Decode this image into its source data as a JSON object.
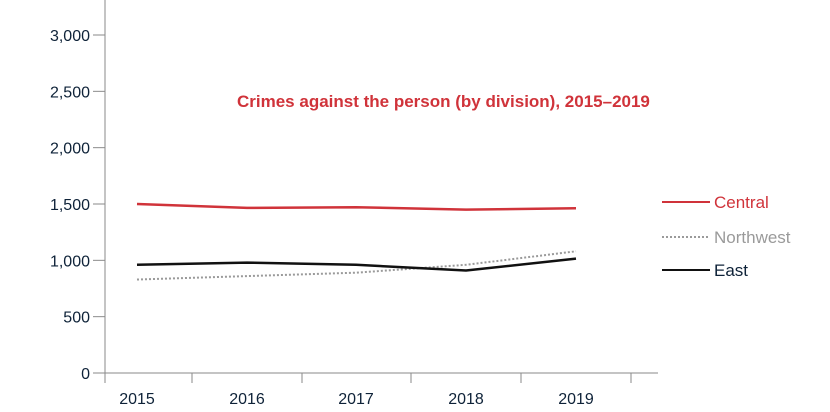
{
  "colors": {
    "axis": "#8a8a8a",
    "tick_text": "#0e2238",
    "title": "#d0333a",
    "central": "#d0333a",
    "northwest": "#9a9a9a",
    "east": "#111111"
  },
  "chart_data": {
    "type": "line",
    "title": "Crimes against the person (by division), 2015–2019",
    "xlabel": "",
    "ylabel": "",
    "categories": [
      "2015",
      "2016",
      "2017",
      "2018",
      "2019"
    ],
    "ylim": [
      0,
      3000
    ],
    "y_ticks": [
      "0",
      "500",
      "1,000",
      "1,500",
      "2,000",
      "2,500",
      "3,000"
    ],
    "y_tick_values": [
      0,
      500,
      1000,
      1500,
      2000,
      2500,
      3000
    ],
    "grid": false,
    "legend_position": "right",
    "series": [
      {
        "name": "Central",
        "values": [
          1500,
          1465,
          1472,
          1450,
          1462
        ],
        "color": "#d0333a",
        "style": "solid"
      },
      {
        "name": "Northwest",
        "values": [
          830,
          860,
          890,
          960,
          1080
        ],
        "color": "#9a9a9a",
        "style": "dotted"
      },
      {
        "name": "East",
        "values": [
          960,
          980,
          960,
          910,
          1015
        ],
        "color": "#111111",
        "style": "solid"
      }
    ]
  }
}
